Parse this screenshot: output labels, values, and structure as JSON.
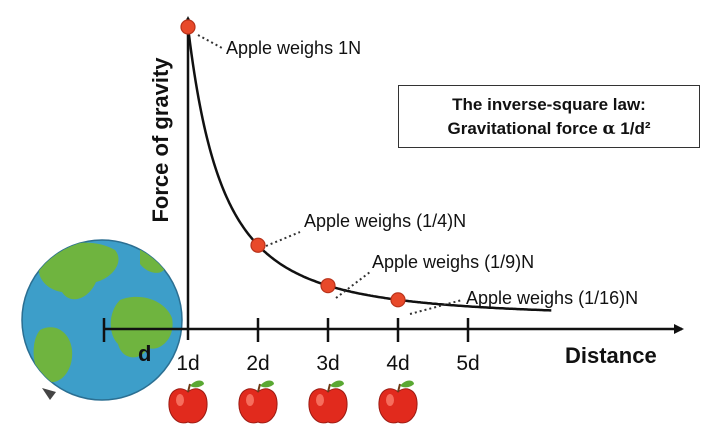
{
  "law_box": {
    "line1": "The inverse-square law:",
    "line2_prefix": "Gravitational force",
    "line2_symbol": "α",
    "line2_suffix": "1/d²"
  },
  "axes": {
    "ylabel": "Force of gravity",
    "xlabel": "Distance",
    "origin_label": "d"
  },
  "ticks": [
    "1d",
    "2d",
    "3d",
    "4d",
    "5d"
  ],
  "points": [
    {
      "distance": 1,
      "force": 1,
      "label": "Apple weighs 1N"
    },
    {
      "distance": 2,
      "force": 0.25,
      "label": "Apple weighs (1/4)N"
    },
    {
      "distance": 3,
      "force": 0.1111,
      "label": "Apple weighs (1/9)N"
    },
    {
      "distance": 4,
      "force": 0.0625,
      "label": "Apple weighs (1/16)N"
    }
  ],
  "icons": {
    "earth": "earth-icon",
    "apple": "apple-icon"
  },
  "colors": {
    "point": "#e8492a",
    "curve": "#111111",
    "apple": "#e12a1d",
    "leaf": "#5aa832",
    "ocean": "#3d9ec9",
    "land": "#6fb43f"
  }
}
